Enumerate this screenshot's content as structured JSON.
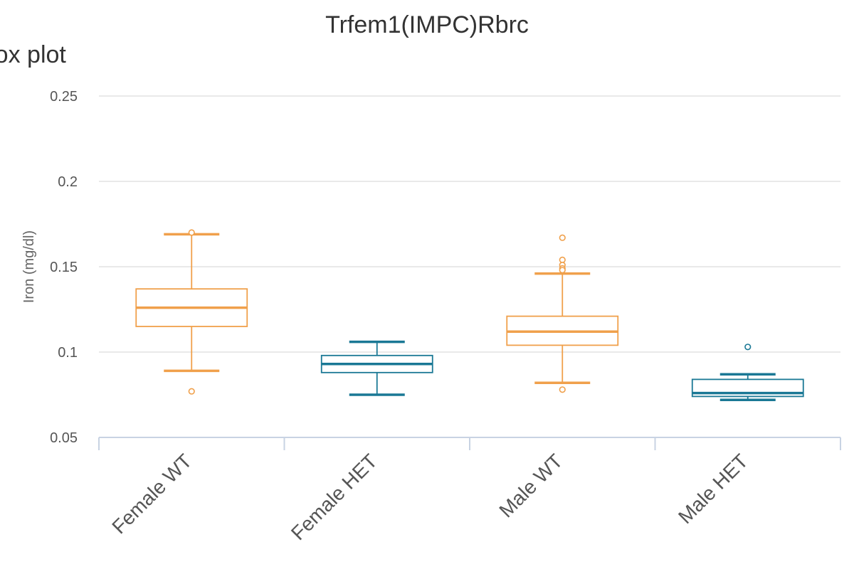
{
  "page": {
    "heading": "Box plot"
  },
  "chart_data": {
    "type": "box",
    "title": "Trfem1(IMPC)Rbrc",
    "xlabel": "",
    "ylabel": "Iron (mg/dl)",
    "ylim": [
      0.05,
      0.25
    ],
    "yticks": [
      0.05,
      0.1,
      0.15,
      0.2,
      0.25
    ],
    "ytick_labels": [
      "0.05",
      "0.1",
      "0.15",
      "0.2",
      "0.25"
    ],
    "grid": true,
    "colors": {
      "WT": "#f0a04b",
      "HET": "#1a7895"
    },
    "categories": [
      "Female WT",
      "Female HET",
      "Male WT",
      "Male HET"
    ],
    "boxes": [
      {
        "category": "Female WT",
        "genotype": "WT",
        "whisker_low": 0.089,
        "q1": 0.115,
        "median": 0.126,
        "q3": 0.137,
        "whisker_high": 0.169,
        "outliers": [
          0.17,
          0.077
        ]
      },
      {
        "category": "Female HET",
        "genotype": "HET",
        "whisker_low": 0.075,
        "q1": 0.088,
        "median": 0.093,
        "q3": 0.098,
        "whisker_high": 0.106,
        "outliers": []
      },
      {
        "category": "Male WT",
        "genotype": "WT",
        "whisker_low": 0.082,
        "q1": 0.104,
        "median": 0.112,
        "q3": 0.121,
        "whisker_high": 0.146,
        "outliers": [
          0.167,
          0.154,
          0.151,
          0.149,
          0.148,
          0.078
        ]
      },
      {
        "category": "Male HET",
        "genotype": "HET",
        "whisker_low": 0.072,
        "q1": 0.074,
        "median": 0.076,
        "q3": 0.084,
        "whisker_high": 0.087,
        "outliers": [
          0.103
        ]
      }
    ]
  }
}
